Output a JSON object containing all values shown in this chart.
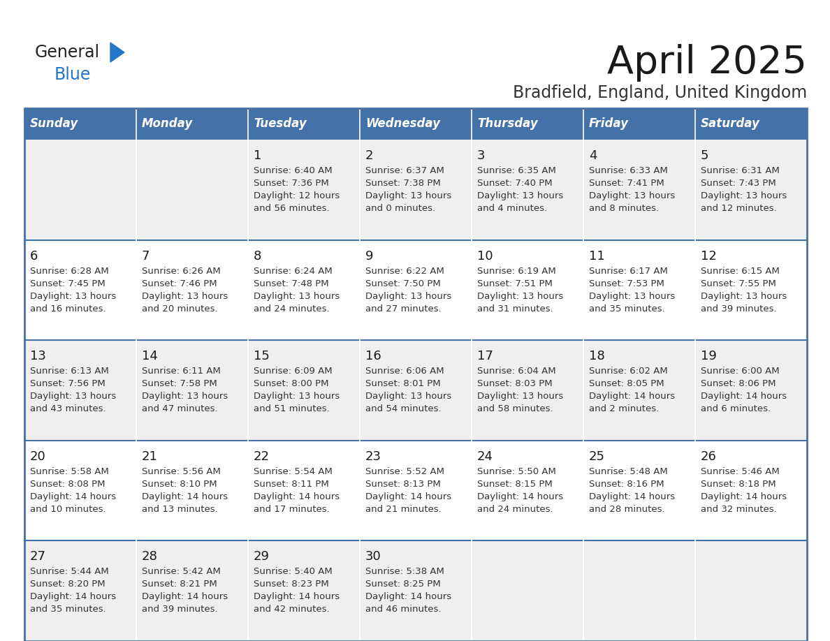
{
  "title": "April 2025",
  "subtitle": "Bradfield, England, United Kingdom",
  "header_bg": "#4472a8",
  "header_text_color": "#ffffff",
  "cell_bg_light": "#efefef",
  "cell_bg_white": "#ffffff",
  "border_color": "#4472a8",
  "text_color": "#333333",
  "day_names": [
    "Sunday",
    "Monday",
    "Tuesday",
    "Wednesday",
    "Thursday",
    "Friday",
    "Saturday"
  ],
  "weeks": [
    [
      {
        "day": "",
        "sunrise": "",
        "sunset": "",
        "daylight_line1": "",
        "daylight_line2": ""
      },
      {
        "day": "",
        "sunrise": "",
        "sunset": "",
        "daylight_line1": "",
        "daylight_line2": ""
      },
      {
        "day": "1",
        "sunrise": "6:40 AM",
        "sunset": "7:36 PM",
        "daylight_line1": "12 hours",
        "daylight_line2": "and 56 minutes."
      },
      {
        "day": "2",
        "sunrise": "6:37 AM",
        "sunset": "7:38 PM",
        "daylight_line1": "13 hours",
        "daylight_line2": "and 0 minutes."
      },
      {
        "day": "3",
        "sunrise": "6:35 AM",
        "sunset": "7:40 PM",
        "daylight_line1": "13 hours",
        "daylight_line2": "and 4 minutes."
      },
      {
        "day": "4",
        "sunrise": "6:33 AM",
        "sunset": "7:41 PM",
        "daylight_line1": "13 hours",
        "daylight_line2": "and 8 minutes."
      },
      {
        "day": "5",
        "sunrise": "6:31 AM",
        "sunset": "7:43 PM",
        "daylight_line1": "13 hours",
        "daylight_line2": "and 12 minutes."
      }
    ],
    [
      {
        "day": "6",
        "sunrise": "6:28 AM",
        "sunset": "7:45 PM",
        "daylight_line1": "13 hours",
        "daylight_line2": "and 16 minutes."
      },
      {
        "day": "7",
        "sunrise": "6:26 AM",
        "sunset": "7:46 PM",
        "daylight_line1": "13 hours",
        "daylight_line2": "and 20 minutes."
      },
      {
        "day": "8",
        "sunrise": "6:24 AM",
        "sunset": "7:48 PM",
        "daylight_line1": "13 hours",
        "daylight_line2": "and 24 minutes."
      },
      {
        "day": "9",
        "sunrise": "6:22 AM",
        "sunset": "7:50 PM",
        "daylight_line1": "13 hours",
        "daylight_line2": "and 27 minutes."
      },
      {
        "day": "10",
        "sunrise": "6:19 AM",
        "sunset": "7:51 PM",
        "daylight_line1": "13 hours",
        "daylight_line2": "and 31 minutes."
      },
      {
        "day": "11",
        "sunrise": "6:17 AM",
        "sunset": "7:53 PM",
        "daylight_line1": "13 hours",
        "daylight_line2": "and 35 minutes."
      },
      {
        "day": "12",
        "sunrise": "6:15 AM",
        "sunset": "7:55 PM",
        "daylight_line1": "13 hours",
        "daylight_line2": "and 39 minutes."
      }
    ],
    [
      {
        "day": "13",
        "sunrise": "6:13 AM",
        "sunset": "7:56 PM",
        "daylight_line1": "13 hours",
        "daylight_line2": "and 43 minutes."
      },
      {
        "day": "14",
        "sunrise": "6:11 AM",
        "sunset": "7:58 PM",
        "daylight_line1": "13 hours",
        "daylight_line2": "and 47 minutes."
      },
      {
        "day": "15",
        "sunrise": "6:09 AM",
        "sunset": "8:00 PM",
        "daylight_line1": "13 hours",
        "daylight_line2": "and 51 minutes."
      },
      {
        "day": "16",
        "sunrise": "6:06 AM",
        "sunset": "8:01 PM",
        "daylight_line1": "13 hours",
        "daylight_line2": "and 54 minutes."
      },
      {
        "day": "17",
        "sunrise": "6:04 AM",
        "sunset": "8:03 PM",
        "daylight_line1": "13 hours",
        "daylight_line2": "and 58 minutes."
      },
      {
        "day": "18",
        "sunrise": "6:02 AM",
        "sunset": "8:05 PM",
        "daylight_line1": "14 hours",
        "daylight_line2": "and 2 minutes."
      },
      {
        "day": "19",
        "sunrise": "6:00 AM",
        "sunset": "8:06 PM",
        "daylight_line1": "14 hours",
        "daylight_line2": "and 6 minutes."
      }
    ],
    [
      {
        "day": "20",
        "sunrise": "5:58 AM",
        "sunset": "8:08 PM",
        "daylight_line1": "14 hours",
        "daylight_line2": "and 10 minutes."
      },
      {
        "day": "21",
        "sunrise": "5:56 AM",
        "sunset": "8:10 PM",
        "daylight_line1": "14 hours",
        "daylight_line2": "and 13 minutes."
      },
      {
        "day": "22",
        "sunrise": "5:54 AM",
        "sunset": "8:11 PM",
        "daylight_line1": "14 hours",
        "daylight_line2": "and 17 minutes."
      },
      {
        "day": "23",
        "sunrise": "5:52 AM",
        "sunset": "8:13 PM",
        "daylight_line1": "14 hours",
        "daylight_line2": "and 21 minutes."
      },
      {
        "day": "24",
        "sunrise": "5:50 AM",
        "sunset": "8:15 PM",
        "daylight_line1": "14 hours",
        "daylight_line2": "and 24 minutes."
      },
      {
        "day": "25",
        "sunrise": "5:48 AM",
        "sunset": "8:16 PM",
        "daylight_line1": "14 hours",
        "daylight_line2": "and 28 minutes."
      },
      {
        "day": "26",
        "sunrise": "5:46 AM",
        "sunset": "8:18 PM",
        "daylight_line1": "14 hours",
        "daylight_line2": "and 32 minutes."
      }
    ],
    [
      {
        "day": "27",
        "sunrise": "5:44 AM",
        "sunset": "8:20 PM",
        "daylight_line1": "14 hours",
        "daylight_line2": "and 35 minutes."
      },
      {
        "day": "28",
        "sunrise": "5:42 AM",
        "sunset": "8:21 PM",
        "daylight_line1": "14 hours",
        "daylight_line2": "and 39 minutes."
      },
      {
        "day": "29",
        "sunrise": "5:40 AM",
        "sunset": "8:23 PM",
        "daylight_line1": "14 hours",
        "daylight_line2": "and 42 minutes."
      },
      {
        "day": "30",
        "sunrise": "5:38 AM",
        "sunset": "8:25 PM",
        "daylight_line1": "14 hours",
        "daylight_line2": "and 46 minutes."
      },
      {
        "day": "",
        "sunrise": "",
        "sunset": "",
        "daylight_line1": "",
        "daylight_line2": ""
      },
      {
        "day": "",
        "sunrise": "",
        "sunset": "",
        "daylight_line1": "",
        "daylight_line2": ""
      },
      {
        "day": "",
        "sunrise": "",
        "sunset": "",
        "daylight_line1": "",
        "daylight_line2": ""
      }
    ]
  ],
  "logo_general_color": "#222222",
  "logo_blue_color": "#2277cc",
  "logo_triangle_color": "#2277cc"
}
